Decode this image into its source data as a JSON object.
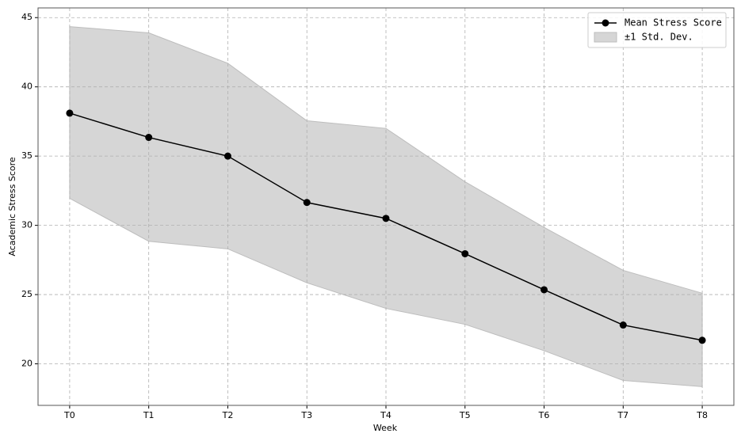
{
  "chart_data": {
    "type": "line",
    "x_label": "Week",
    "y_label": "Academic Stress Score",
    "categories": [
      "T0",
      "T1",
      "T2",
      "T3",
      "T4",
      "T5",
      "T6",
      "T7",
      "T8"
    ],
    "series": [
      {
        "name": "Mean Stress Score",
        "color": "#000000",
        "values": [
          38.1,
          36.35,
          35.0,
          31.65,
          30.5,
          27.95,
          25.35,
          22.8,
          21.7
        ]
      }
    ],
    "band": {
      "name": "±1 Std. Dev.",
      "color": "#d6d6d6",
      "upper": [
        44.35,
        43.9,
        41.7,
        37.55,
        37.0,
        33.15,
        29.85,
        26.75,
        25.1
      ],
      "lower": [
        31.95,
        28.85,
        28.3,
        25.85,
        24.0,
        22.85,
        20.95,
        18.8,
        18.35
      ]
    },
    "ylim": [
      17,
      45.7
    ],
    "yticks": [
      20,
      25,
      30,
      35,
      40,
      45
    ],
    "grid": true,
    "legend": "upper right"
  }
}
